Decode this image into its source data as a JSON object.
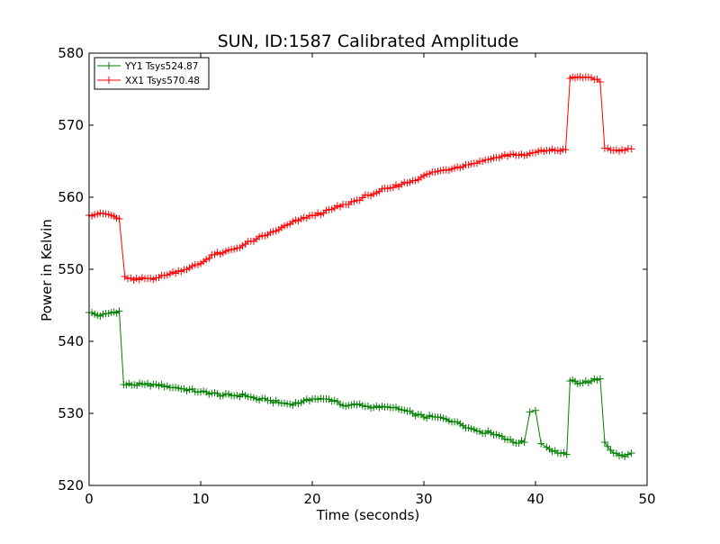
{
  "chart_data": {
    "type": "line",
    "title": "SUN, ID:1587 Calibrated Amplitude",
    "xlabel": "Time (seconds)",
    "ylabel": "Power in Kelvin",
    "xlim": [
      0,
      50
    ],
    "ylim": [
      520,
      580
    ],
    "xticks": [
      "0",
      "10",
      "20",
      "30",
      "40",
      "50"
    ],
    "yticks": [
      "520",
      "530",
      "540",
      "550",
      "560",
      "570",
      "580"
    ],
    "grid": false,
    "legend_position": "top-left",
    "marker": "plus",
    "series": [
      {
        "name": "YY1 Tsys524.87",
        "color": "#008000",
        "x": [
          0,
          1,
          2,
          2.7,
          3.1,
          5,
          6,
          7,
          8,
          10,
          11,
          12,
          14,
          15,
          16,
          17,
          18,
          19,
          20,
          21,
          22,
          23,
          24,
          25,
          26,
          27,
          28,
          29,
          30,
          31,
          32,
          33,
          34,
          35,
          36,
          37,
          38,
          39,
          39.5,
          40,
          40.5,
          41,
          42,
          42.8,
          43.1,
          44,
          45,
          45.8,
          46.2,
          47,
          48,
          48.6
        ],
        "values": [
          544,
          543.5,
          544,
          544.2,
          534,
          534,
          534,
          533.8,
          533.5,
          533,
          532.8,
          532.5,
          532.5,
          532,
          531.8,
          531.5,
          531.3,
          531.5,
          532,
          532,
          531.8,
          531,
          531.2,
          531,
          530.8,
          530.8,
          530.5,
          530,
          529.5,
          529.5,
          529.2,
          528.8,
          528,
          527.5,
          527.3,
          526.8,
          526,
          526,
          530.2,
          530.4,
          525.8,
          525.3,
          524.5,
          524.3,
          534.5,
          534.2,
          534.5,
          534.8,
          526,
          524.5,
          524,
          524.5
        ]
      },
      {
        "name": "XX1 Tsys570.48",
        "color": "#ff0000",
        "x": [
          0,
          1,
          2,
          2.7,
          3.2,
          4,
          5,
          6,
          7,
          8,
          9,
          10,
          11,
          12,
          13,
          14,
          15,
          16,
          17,
          18,
          19,
          20,
          21,
          22,
          23,
          24,
          25,
          26,
          27,
          28,
          29,
          30,
          31,
          32,
          33,
          34,
          35,
          36,
          37,
          38,
          39,
          40,
          41,
          42,
          42.7,
          43.1,
          44,
          45,
          45.8,
          46.2,
          47,
          48,
          48.6
        ],
        "values": [
          557.5,
          557.8,
          557.5,
          557,
          549,
          548.5,
          548.7,
          548.8,
          549.2,
          549.8,
          550.2,
          550.8,
          552,
          552.3,
          552.8,
          553.5,
          554.2,
          554.8,
          555.5,
          556.3,
          557,
          557.5,
          557.8,
          558.5,
          559,
          559.6,
          560.3,
          560.8,
          561.3,
          561.8,
          562.3,
          563,
          563.5,
          563.8,
          564.2,
          564.5,
          565,
          565.3,
          565.7,
          566,
          565.8,
          566.2,
          566.5,
          566.5,
          566.6,
          576.5,
          576.7,
          576.6,
          576,
          566.8,
          566.5,
          566.5,
          566.7
        ]
      }
    ]
  }
}
